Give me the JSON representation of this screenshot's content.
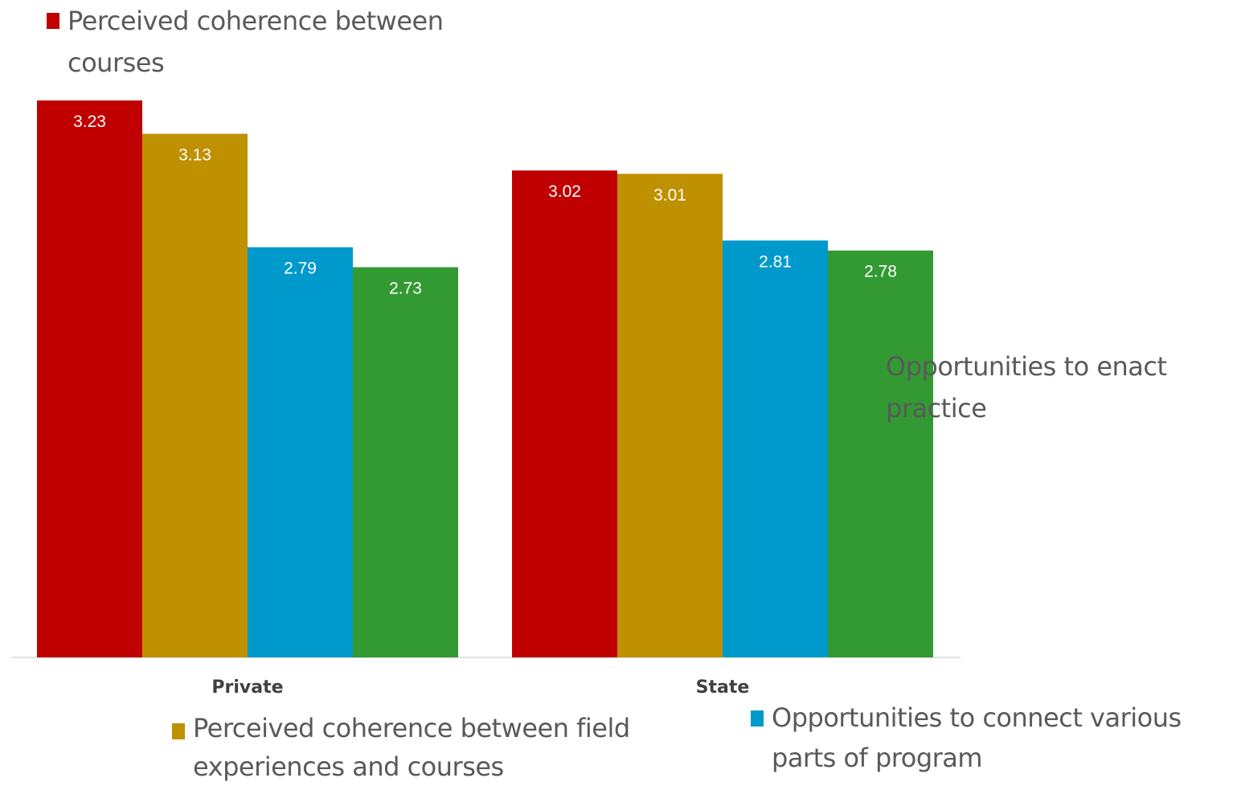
{
  "chart_data": {
    "type": "bar",
    "categories": [
      "Private",
      "State"
    ],
    "series": [
      {
        "name": "Perceived coherence between courses",
        "color": "#c00000",
        "values": [
          3.23,
          3.02
        ]
      },
      {
        "name": "Perceived coherence between field experiences and courses",
        "color": "#bf9000",
        "values": [
          3.13,
          3.01
        ]
      },
      {
        "name": "Opportunities to connect various parts of program",
        "color": "#0099cc",
        "values": [
          2.79,
          2.81
        ]
      },
      {
        "name": "Opportunities to enact practice",
        "color": "#339933",
        "values": [
          2.73,
          2.78
        ]
      }
    ],
    "data_labels": [
      [
        "3.23",
        "3.02"
      ],
      [
        "3.13",
        "3.01"
      ],
      [
        "2.79",
        "2.81"
      ],
      [
        "2.73",
        "2.78"
      ]
    ],
    "title": "",
    "xlabel": "",
    "ylabel": "",
    "ylim": [
      1.56,
      3.23
    ],
    "grid": false,
    "legend": [
      {
        "line1": "Perceived coherence between",
        "line2": "courses"
      },
      {
        "line1": "Perceived coherence between field",
        "line2": "experiences and courses"
      },
      {
        "line1": "Opportunities to connect various",
        "line2": "parts of program"
      },
      {
        "line1": "Opportunities to enact practice",
        "line2": ""
      }
    ]
  }
}
